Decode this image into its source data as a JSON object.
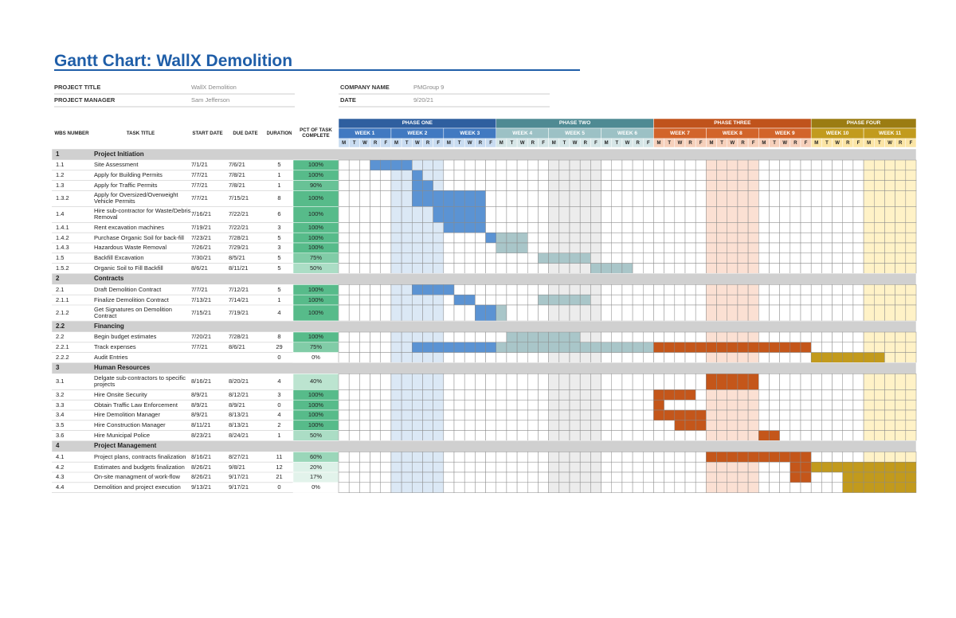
{
  "title": "Gantt Chart: WallX Demolition",
  "project_info": {
    "project_title": {
      "label": "PROJECT TITLE",
      "value": "WallX Demolition"
    },
    "project_manager": {
      "label": "PROJECT MANAGER",
      "value": "Sam Jefferson"
    },
    "company_name": {
      "label": "COMPANY NAME",
      "value": "PMGroup 9"
    },
    "date": {
      "label": "DATE",
      "value": "9/20/21"
    }
  },
  "table": {
    "columns": [
      "WBS NUMBER",
      "TASK TITLE",
      "START DATE",
      "DUE DATE",
      "DURATION",
      "PCT OF TASK COMPLETE"
    ],
    "phases": [
      "PHASE ONE",
      "PHASE TWO",
      "PHASE THREE",
      "PHASE FOUR"
    ],
    "weeks": [
      "WEEK 1",
      "WEEK 2",
      "WEEK 3",
      "WEEK 4",
      "WEEK 5",
      "WEEK 6",
      "WEEK 7",
      "WEEK 8",
      "WEEK 9",
      "WEEK 10",
      "WEEK 11"
    ],
    "days": [
      "M",
      "T",
      "W",
      "R",
      "F"
    ],
    "rows": [
      {
        "wbs": "1",
        "title": "Project Initiation"
      },
      {
        "wbs": "1.1",
        "title": "Site Assessment",
        "start": "7/1/21",
        "due": "7/6/21",
        "duration": 5,
        "pct": "100%"
      },
      {
        "wbs": "1.2",
        "title": "Apply for Building Permits",
        "start": "7/7/21",
        "due": "7/8/21",
        "duration": 1,
        "pct": "100%"
      },
      {
        "wbs": "1.3",
        "title": "Apply for Traffic Permits",
        "start": "7/7/21",
        "due": "7/8/21",
        "duration": 1,
        "pct": "90%"
      },
      {
        "wbs": "1.3.2",
        "title": "Apply for Oversized/Overweight Vehicle Permits",
        "start": "7/7/21",
        "due": "7/15/21",
        "duration": 8,
        "pct": "100%"
      },
      {
        "wbs": "1.4",
        "title": "Hire sub-contractor for Waste/Debris Removal",
        "start": "7/16/21",
        "due": "7/22/21",
        "duration": 6,
        "pct": "100%"
      },
      {
        "wbs": "1.4.1",
        "title": "Rent excavation machines",
        "start": "7/19/21",
        "due": "7/22/21",
        "duration": 3,
        "pct": "100%"
      },
      {
        "wbs": "1.4.2",
        "title": "Purchase Organic Soil for back-fill",
        "start": "7/23/21",
        "due": "7/28/21",
        "duration": 5,
        "pct": "100%"
      },
      {
        "wbs": "1.4.3",
        "title": "Hazardous Waste Removal",
        "start": "7/26/21",
        "due": "7/29/21",
        "duration": 3,
        "pct": "100%"
      },
      {
        "wbs": "1.5",
        "title": "Backfill Excavation",
        "start": "7/30/21",
        "due": "8/5/21",
        "duration": 5,
        "pct": "75%"
      },
      {
        "wbs": "1.5.2",
        "title": "Organic Soil to Fill Backfill",
        "start": "8/6/21",
        "due": "8/11/21",
        "duration": 5,
        "pct": "50%"
      },
      {
        "wbs": "2",
        "title": "Contracts"
      },
      {
        "wbs": "2.1",
        "title": "Draft Demolition Contract",
        "start": "7/7/21",
        "due": "7/12/21",
        "duration": 5,
        "pct": "100%"
      },
      {
        "wbs": "2.1.1",
        "title": "Finalize Demolition Contract",
        "start": "7/13/21",
        "due": "7/14/21",
        "duration": 1,
        "pct": "100%"
      },
      {
        "wbs": "2.1.2",
        "title": "Get Signatures on Demolition Contract",
        "start": "7/15/21",
        "due": "7/19/21",
        "duration": 4,
        "pct": "100%"
      },
      {
        "wbs": "2.2",
        "title": "Financing"
      },
      {
        "wbs": "2.2",
        "title": "Begin budget estimates",
        "start": "7/20/21",
        "due": "7/28/21",
        "duration": 8,
        "pct": "100%"
      },
      {
        "wbs": "2.2.1",
        "title": "Track expenses",
        "start": "7/7/21",
        "due": "8/6/21",
        "duration": 29,
        "pct": "75%"
      },
      {
        "wbs": "2.2.2",
        "title": "Audit Entries",
        "duration": 0,
        "pct": "0%"
      },
      {
        "wbs": "3",
        "title": "Human Resources"
      },
      {
        "wbs": "3.1",
        "title": "Delgate sub-contractors to specific projects",
        "start": "8/16/21",
        "due": "8/20/21",
        "duration": 4,
        "pct": "40%"
      },
      {
        "wbs": "3.2",
        "title": "Hire Onsite Security",
        "start": "8/9/21",
        "due": "8/12/21",
        "duration": 3,
        "pct": "100%"
      },
      {
        "wbs": "3.3",
        "title": "Obtain Traffic Law Enforcement",
        "start": "8/9/21",
        "due": "8/9/21",
        "duration": 0,
        "pct": "100%"
      },
      {
        "wbs": "3.4",
        "title": "Hire Demolition Manager",
        "start": "8/9/21",
        "due": "8/13/21",
        "duration": 4,
        "pct": "100%"
      },
      {
        "wbs": "3.5",
        "title": "Hire Construction Manager",
        "start": "8/11/21",
        "due": "8/13/21",
        "duration": 2,
        "pct": "100%"
      },
      {
        "wbs": "3.6",
        "title": "Hire Municipal Police",
        "start": "8/23/21",
        "due": "8/24/21",
        "duration": 1,
        "pct": "50%"
      },
      {
        "wbs": "4",
        "title": "Project Management"
      },
      {
        "wbs": "4.1",
        "title": "Project plans, contracts finalization",
        "start": "8/16/21",
        "due": "8/27/21",
        "duration": 11,
        "pct": "60%"
      },
      {
        "wbs": "4.2",
        "title": "Estimates and budgets finalization",
        "start": "8/26/21",
        "due": "9/8/21",
        "duration": 12,
        "pct": "20%"
      },
      {
        "wbs": "4.3",
        "title": "On-site managment of work-flow",
        "start": "8/26/21",
        "due": "9/17/21",
        "duration": 21,
        "pct": "17%"
      },
      {
        "wbs": "4.4",
        "title": "Demolition and project execution",
        "start": "9/13/21",
        "due": "9/17/21",
        "duration": 0,
        "pct": "0%"
      }
    ]
  }
}
